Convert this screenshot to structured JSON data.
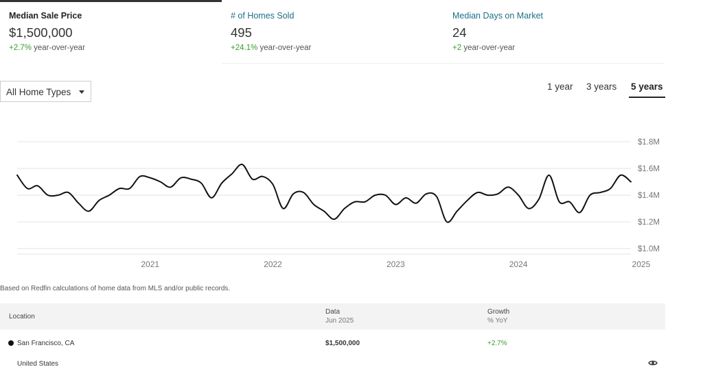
{
  "stats": [
    {
      "title": "Median Sale Price",
      "value": "$1,500,000",
      "change": "+2.7%",
      "change_suffix": " year-over-year"
    },
    {
      "title": "# of Homes Sold",
      "value": "495",
      "change": "+24.1%",
      "change_suffix": " year-over-year"
    },
    {
      "title": "Median Days on Market",
      "value": "24",
      "change": "+2",
      "change_suffix": " year-over-year"
    }
  ],
  "filter": {
    "selected": "All Home Types"
  },
  "range_tabs": [
    {
      "label": "1 year",
      "active": false
    },
    {
      "label": "3 years",
      "active": false
    },
    {
      "label": "5 years",
      "active": true
    }
  ],
  "chart_data": {
    "type": "line",
    "title": "",
    "xlabel": "",
    "ylabel": "",
    "ylim": [
      1000000,
      1800000
    ],
    "y_ticks": [
      "$1.8M",
      "$1.6M",
      "$1.4M",
      "$1.2M",
      "$1.0M"
    ],
    "x_ticks": [
      "2021",
      "2022",
      "2023",
      "2024",
      "2025"
    ],
    "grid": true,
    "series": [
      {
        "line_color": "#111111",
        "x": [
          "2020-06",
          "2020-07",
          "2020-08",
          "2020-09",
          "2020-10",
          "2020-11",
          "2020-12",
          "2021-01",
          "2021-02",
          "2021-03",
          "2021-04",
          "2021-05",
          "2021-06",
          "2021-07",
          "2021-08",
          "2021-09",
          "2021-10",
          "2021-11",
          "2021-12",
          "2022-01",
          "2022-02",
          "2022-03",
          "2022-04",
          "2022-05",
          "2022-06",
          "2022-07",
          "2022-08",
          "2022-09",
          "2022-10",
          "2022-11",
          "2022-12",
          "2023-01",
          "2023-02",
          "2023-03",
          "2023-04",
          "2023-05",
          "2023-06",
          "2023-07",
          "2023-08",
          "2023-09",
          "2023-10",
          "2023-11",
          "2023-12",
          "2024-01",
          "2024-02",
          "2024-03",
          "2024-04",
          "2024-05",
          "2024-06",
          "2024-07",
          "2024-08",
          "2024-09",
          "2024-10",
          "2024-11",
          "2024-12",
          "2025-01",
          "2025-02",
          "2025-03",
          "2025-04",
          "2025-05",
          "2025-06"
        ],
        "values": [
          1550000,
          1450000,
          1470000,
          1400000,
          1400000,
          1420000,
          1340000,
          1280000,
          1360000,
          1400000,
          1450000,
          1450000,
          1540000,
          1530000,
          1500000,
          1460000,
          1530000,
          1520000,
          1490000,
          1380000,
          1490000,
          1560000,
          1630000,
          1520000,
          1540000,
          1480000,
          1300000,
          1410000,
          1420000,
          1330000,
          1280000,
          1220000,
          1300000,
          1350000,
          1350000,
          1400000,
          1400000,
          1330000,
          1380000,
          1340000,
          1410000,
          1390000,
          1200000,
          1280000,
          1360000,
          1420000,
          1400000,
          1410000,
          1460000,
          1400000,
          1300000,
          1370000,
          1550000,
          1350000,
          1350000,
          1270000,
          1400000,
          1420000,
          1450000,
          1550000,
          1500000
        ]
      }
    ]
  },
  "footnote": "Based on Redfin calculations of home data from MLS and/or public records.",
  "table": {
    "headers": {
      "location": "Location",
      "data": "Data",
      "data_sub": "Jun 2025",
      "growth": "Growth",
      "growth_sub": "% YoY"
    },
    "rows": [
      {
        "location": "San Francisco, CA",
        "data": "$1,500,000",
        "growth": "+2.7%"
      },
      {
        "location": "United States",
        "data": "",
        "growth": ""
      }
    ]
  }
}
